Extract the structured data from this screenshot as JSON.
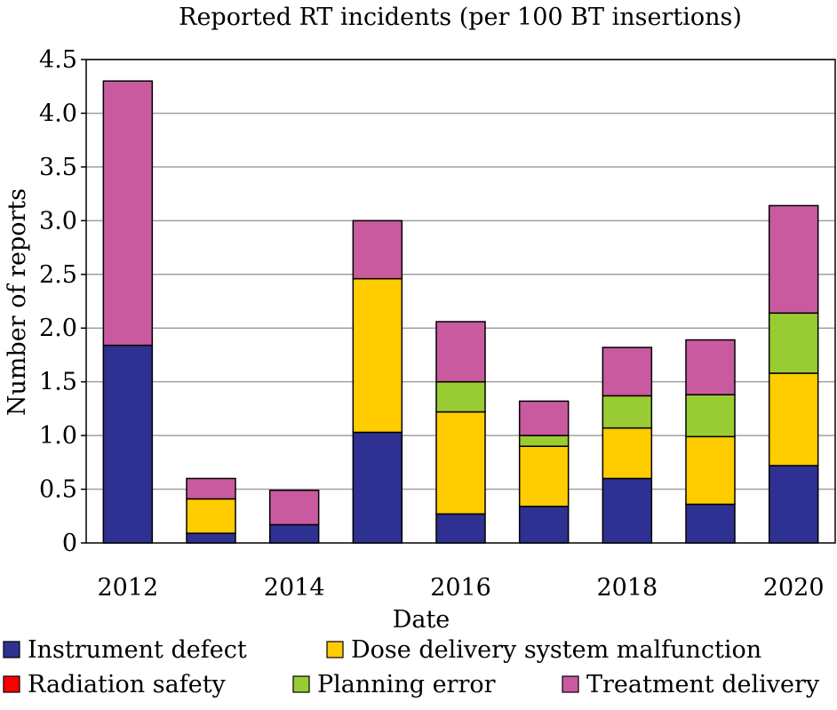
{
  "chart_data": {
    "type": "bar",
    "stacked": true,
    "title": "Reported RT incidents (per 100 BT insertions)",
    "xlabel": "Date",
    "ylabel": "Number of reports",
    "ylim": [
      0,
      4.5
    ],
    "yticks": [
      "0",
      "0.5",
      "1.0",
      "1.5",
      "2.0",
      "2.5",
      "3.0",
      "3.5",
      "4.0",
      "4.5"
    ],
    "xtick_labels": [
      "2012",
      "2014",
      "2016",
      "2018",
      "2020"
    ],
    "grid": true,
    "legend_placement": "bottom",
    "categories": [
      "2012",
      "2013",
      "2014",
      "2015",
      "2016",
      "2017",
      "2018",
      "2019",
      "2020"
    ],
    "series": [
      {
        "name": "Instrument defect",
        "color": "#2e3192",
        "values": [
          1.84,
          0.09,
          0.17,
          1.03,
          0.27,
          0.34,
          0.6,
          0.36,
          0.72
        ]
      },
      {
        "name": "Dose delivery system malfunction",
        "color": "#ffcc00",
        "values": [
          0,
          0.32,
          0,
          1.43,
          0.95,
          0.56,
          0.47,
          0.63,
          0.86
        ]
      },
      {
        "name": "Radiation safety",
        "color": "#ff0000",
        "values": [
          0,
          0,
          0,
          0,
          0,
          0,
          0,
          0,
          0
        ]
      },
      {
        "name": "Planning error",
        "color": "#99cc33",
        "values": [
          0,
          0,
          0,
          0,
          0.28,
          0.1,
          0.3,
          0.39,
          0.56
        ]
      },
      {
        "name": "Treatment delivery",
        "color": "#c95aa0",
        "values": [
          2.46,
          0.19,
          0.32,
          0.54,
          0.56,
          0.32,
          0.45,
          0.51,
          1.0
        ]
      }
    ]
  }
}
